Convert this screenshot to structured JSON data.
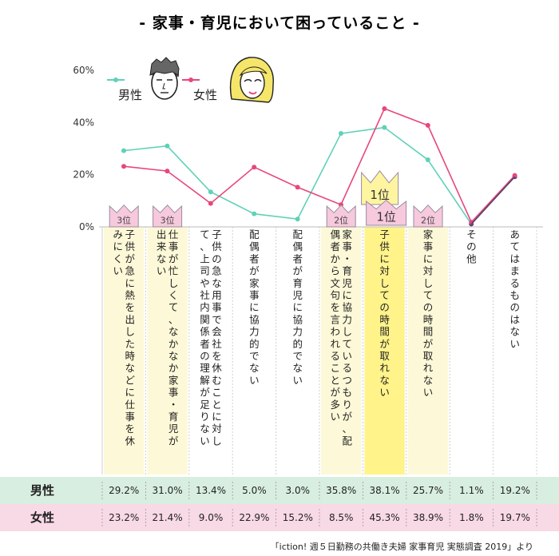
{
  "page": {
    "title": "- 家事・育児において困っていること -",
    "source": "「iction! 週５日勤務の共働き夫婦 家事育児 実態調査 2019」より"
  },
  "colors": {
    "male": "#5fd1b8",
    "female": "#e8477a",
    "other_point": "#5a3f6e",
    "highlight": "#fdf9d8",
    "highlight_top": "#fff38a",
    "crown": "#f7c9dd",
    "crown_top": "#f7c9dd",
    "male_row": "#d8eee0",
    "female_row": "#f8d9e6",
    "grid_line": "#bbbbbb"
  },
  "icons": {
    "male": "man-face-icon",
    "female": "woman-face-icon",
    "rank": "crown-icon"
  },
  "chart_data": {
    "type": "line",
    "categories": [
      "子供が急に熱を出した時などに仕事を休みにくい",
      "仕事が忙しくて、なかなか家事・育児が出来ない",
      "子供の急な用事で会社を休むことに対して、上司や社内関係者の理解が足りない",
      "配偶者が家事に協力的でない",
      "配偶者が育児に協力的でない",
      "家事・育児に協力しているつもりが、配偶者から文句を言われることが多い",
      "子供に対しての時間が取れない",
      "家事に対しての時間が取れない",
      "その他",
      "あてはまるものはない"
    ],
    "series": [
      {
        "name": "男性",
        "values": [
          29.2,
          31.0,
          13.4,
          5.0,
          3.0,
          35.8,
          38.1,
          25.7,
          1.1,
          19.2
        ],
        "labels": [
          "29.2%",
          "31.0%",
          "13.4%",
          "5.0%",
          "3.0%",
          "35.8%",
          "38.1%",
          "25.7%",
          "1.1%",
          "19.2%"
        ]
      },
      {
        "name": "女性",
        "values": [
          23.2,
          21.4,
          9.0,
          22.9,
          15.2,
          8.5,
          45.3,
          38.9,
          1.8,
          19.7
        ],
        "labels": [
          "23.2%",
          "21.4%",
          "9.0%",
          "22.9%",
          "15.2%",
          "8.5%",
          "45.3%",
          "38.9%",
          "1.8%",
          "19.7%"
        ]
      }
    ],
    "yticks": [
      "0%",
      "20%",
      "40%",
      "60%"
    ],
    "ylim": [
      0,
      60
    ],
    "legend": {
      "position": "top-left"
    },
    "ranks": [
      {
        "index": 0,
        "label": "3位",
        "top": false
      },
      {
        "index": 1,
        "label": "3位",
        "top": false
      },
      {
        "index": 5,
        "label": "2位",
        "top": false
      },
      {
        "index": 6,
        "label": "1位",
        "top": true
      },
      {
        "index": 7,
        "label": "2位",
        "top": false
      }
    ],
    "highlighted": [
      0,
      1,
      5,
      6,
      7
    ],
    "top_highlight": 6
  }
}
